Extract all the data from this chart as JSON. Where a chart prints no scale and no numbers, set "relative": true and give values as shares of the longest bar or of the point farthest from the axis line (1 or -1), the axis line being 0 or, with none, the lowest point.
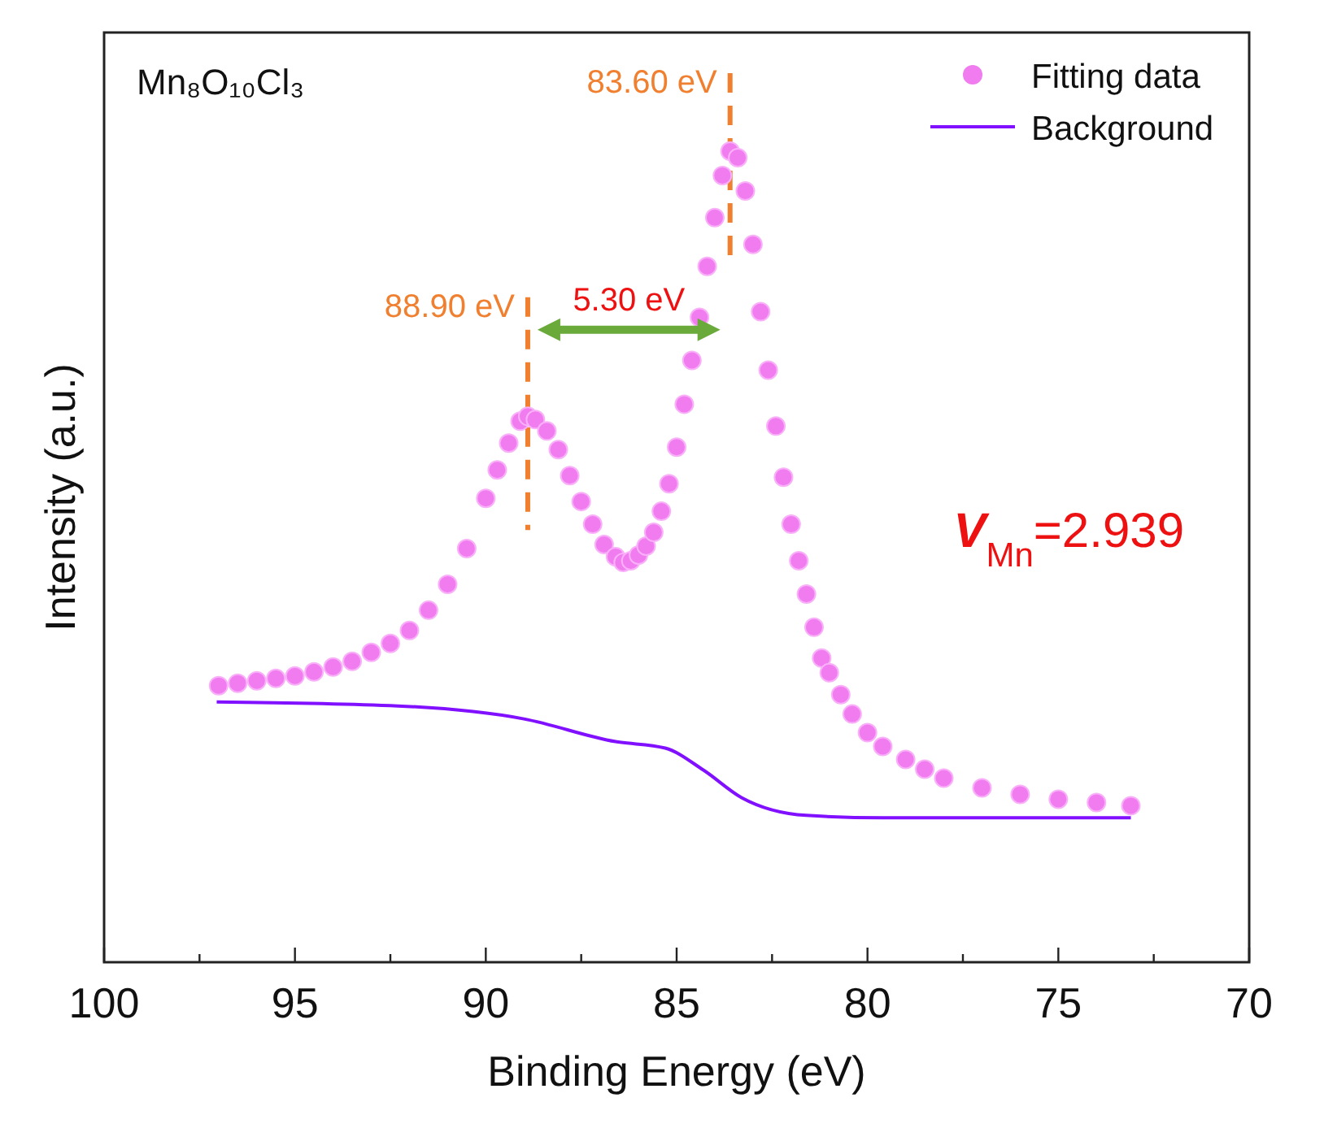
{
  "chart_data": {
    "type": "line",
    "relative": true,
    "title": "Mn₈O₁₀Cl₃",
    "xlabel": "Binding Energy (eV)",
    "ylabel": "Intensity (a.u.)",
    "xlim": [
      100,
      70
    ],
    "xticks": [
      100,
      {
        "value": 97.5,
        "label": null
      },
      95,
      {
        "value": 92.5,
        "label": null
      },
      90,
      {
        "value": 87.5,
        "label": null
      },
      85,
      {
        "value": 82.5,
        "label": null
      },
      80,
      {
        "value": 77.5,
        "label": null
      },
      75,
      {
        "value": 72.5,
        "label": null
      },
      70
    ],
    "grid": false,
    "legend": "top right",
    "series": [
      {
        "name": "Fitting data",
        "type": "scatter",
        "marker": "circle",
        "color": "#f07cf0",
        "x": [
          97.0,
          96.5,
          96.0,
          95.5,
          95.0,
          94.5,
          94.0,
          93.5,
          93.0,
          92.5,
          92.0,
          91.5,
          91.0,
          90.5,
          90.0,
          89.7,
          89.4,
          89.1,
          88.9,
          88.7,
          88.4,
          88.1,
          87.8,
          87.5,
          87.2,
          86.9,
          86.6,
          86.4,
          86.2,
          86.0,
          85.8,
          85.6,
          85.4,
          85.2,
          85.0,
          84.8,
          84.6,
          84.4,
          84.2,
          84.0,
          83.8,
          83.6,
          83.4,
          83.2,
          83.0,
          82.8,
          82.6,
          82.4,
          82.2,
          82.0,
          81.8,
          81.6,
          81.4,
          81.2,
          81.0,
          80.7,
          80.4,
          80.0,
          79.6,
          79.0,
          78.5,
          78.0,
          77.0,
          76.0,
          75.0,
          74.0,
          73.1
        ],
        "values": [
          0.341,
          0.344,
          0.347,
          0.35,
          0.353,
          0.358,
          0.364,
          0.371,
          0.382,
          0.393,
          0.409,
          0.434,
          0.466,
          0.51,
          0.572,
          0.607,
          0.64,
          0.667,
          0.673,
          0.669,
          0.655,
          0.632,
          0.6,
          0.568,
          0.54,
          0.515,
          0.5,
          0.493,
          0.495,
          0.502,
          0.513,
          0.53,
          0.556,
          0.59,
          0.635,
          0.688,
          0.742,
          0.795,
          0.858,
          0.918,
          0.97,
          1,
          0.992,
          0.951,
          0.885,
          0.802,
          0.73,
          0.661,
          0.598,
          0.54,
          0.495,
          0.454,
          0.413,
          0.375,
          0.357,
          0.33,
          0.306,
          0.283,
          0.266,
          0.25,
          0.238,
          0.227,
          0.215,
          0.207,
          0.201,
          0.197,
          0.193
        ]
      },
      {
        "name": "Background",
        "type": "line",
        "line_style": "solid",
        "color": "#8010ff",
        "x": [
          97.05,
          92.3,
          89.0,
          86.6,
          85.3,
          84.3,
          83.3,
          81.6,
          79.6,
          73.1
        ],
        "values": [
          0.321,
          0.316,
          0.3,
          0.272,
          0.264,
          0.237,
          0.203,
          0.181,
          0.178,
          0.178
        ]
      }
    ],
    "ref_lines": [
      {
        "axis": "x",
        "value": 88.9,
        "label": "88.90 eV",
        "color": "#f08030",
        "line_style": "dashed"
      },
      {
        "axis": "x",
        "value": 83.6,
        "label": "83.60 eV",
        "color": "#f08030",
        "line_style": "dashed"
      }
    ],
    "annotations": [
      "5.30 eV",
      "$^{}$V$_{Mn}$=2.939"
    ]
  }
}
